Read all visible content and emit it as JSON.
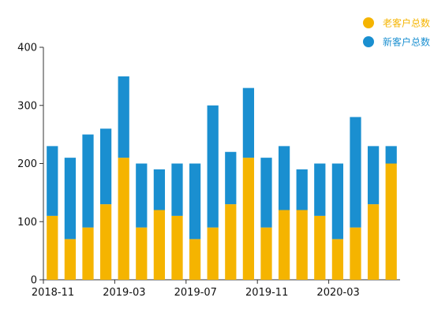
{
  "chart_data": {
    "type": "bar",
    "stacked": true,
    "categories": [
      "2018-11",
      "2018-12",
      "2019-01",
      "2019-02",
      "2019-03",
      "2019-04",
      "2019-05",
      "2019-06",
      "2019-07",
      "2019-08",
      "2019-09",
      "2019-10",
      "2019-11",
      "2019-12",
      "2020-01",
      "2020-02",
      "2020-03",
      "2020-04",
      "2020-05",
      "2020-06"
    ],
    "x_tick_labels": [
      {
        "category": "2018-11",
        "label": "2018-11"
      },
      {
        "category": "2019-03",
        "label": "2019-03"
      },
      {
        "category": "2019-07",
        "label": "2019-07"
      },
      {
        "category": "2019-11",
        "label": "2019-11"
      },
      {
        "category": "2020-03",
        "label": "2020-03"
      }
    ],
    "series": [
      {
        "name": "老客户总数",
        "color": "#F5B400",
        "values": [
          110,
          70,
          90,
          130,
          210,
          90,
          120,
          110,
          70,
          90,
          130,
          210,
          90,
          120,
          120,
          110,
          70,
          90,
          130,
          200
        ]
      },
      {
        "name": "新客户总数",
        "color": "#1A8FD0",
        "values": [
          120,
          140,
          160,
          130,
          140,
          110,
          70,
          90,
          130,
          210,
          90,
          120,
          120,
          110,
          70,
          90,
          130,
          190,
          100,
          30
        ]
      }
    ],
    "ylim": [
      0,
      400
    ],
    "yticks": [
      0,
      100,
      200,
      300,
      400
    ],
    "grid": false,
    "legend_position": "top-right",
    "title": "",
    "xlabel": "",
    "ylabel": ""
  }
}
